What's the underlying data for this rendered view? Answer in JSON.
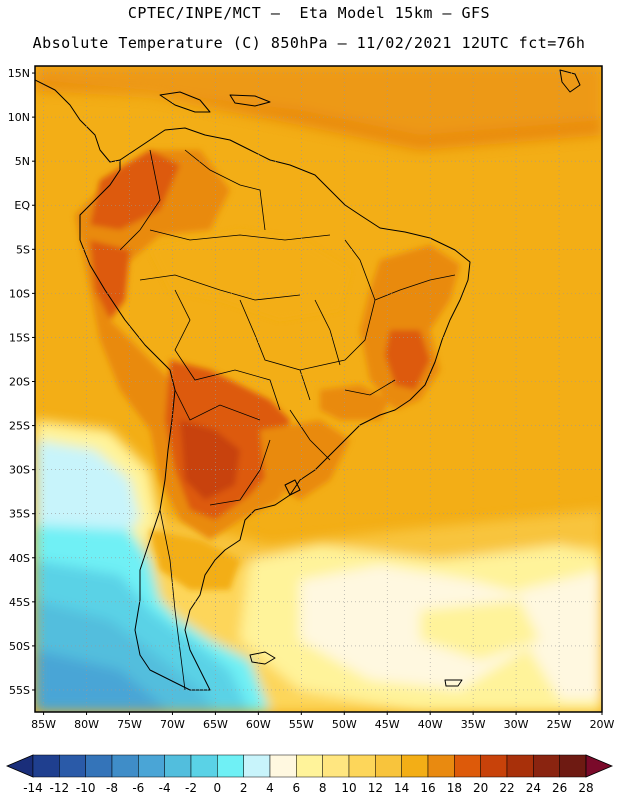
{
  "header": {
    "title_line1": "CPTEC/INPE/MCT –  Eta Model 15km – GFS",
    "title_line2": "Absolute Temperature (C) 850hPa – 11/02/2021 12UTC fct=76h"
  },
  "map": {
    "lat_ticks": [
      "15N",
      "10N",
      "5N",
      "EQ",
      "5S",
      "10S",
      "15S",
      "20S",
      "25S",
      "30S",
      "35S",
      "40S",
      "45S",
      "50S",
      "55S"
    ],
    "lon_ticks": [
      "85W",
      "80W",
      "75W",
      "70W",
      "65W",
      "60W",
      "55W",
      "50W",
      "45W",
      "40W",
      "35W",
      "30W",
      "25W",
      "20W"
    ],
    "lat_range": [
      15.8,
      -57.5
    ],
    "lon_range": [
      -86,
      -20
    ],
    "grid": "dotted"
  },
  "colorbar": {
    "labels": [
      "-14",
      "-12",
      "-10",
      "-8",
      "-6",
      "-4",
      "-2",
      "0",
      "2",
      "4",
      "6",
      "8",
      "10",
      "12",
      "14",
      "16",
      "18",
      "20",
      "22",
      "24",
      "26",
      "28"
    ],
    "colors": [
      "#1f3f8f",
      "#2a5aa8",
      "#3474b9",
      "#3f8dc8",
      "#4aa5d6",
      "#52bedd",
      "#5ad2e6",
      "#6ff0f5",
      "#c8f4fb",
      "#fff8e0",
      "#fff39a",
      "#ffe680",
      "#fdd65a",
      "#f8c43c",
      "#f3ae16",
      "#e98a10",
      "#dd5a0a",
      "#c8420a",
      "#a8300a",
      "#8a2410",
      "#6e1a12"
    ],
    "under_color": "#1a2e7a",
    "over_color": "#7a0a2a"
  }
}
